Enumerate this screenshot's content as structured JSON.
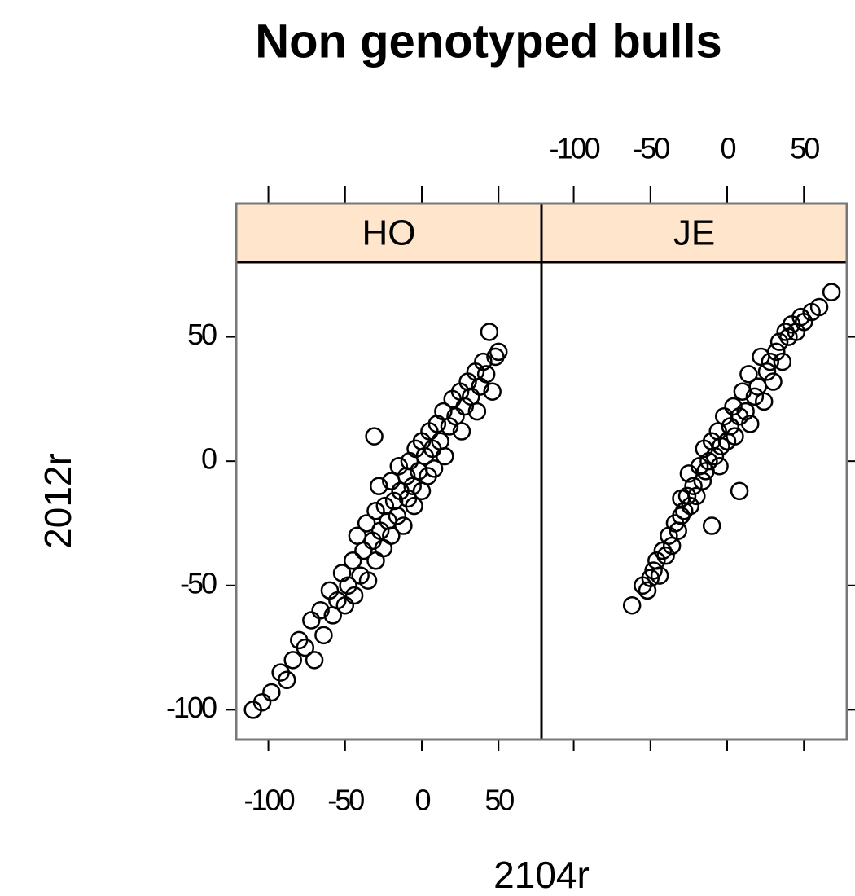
{
  "chart_data": {
    "type": "scatter",
    "title": "Non genotyped bulls",
    "xlabel": "2104r",
    "ylabel": "2012r",
    "xlim": [
      -121,
      78
    ],
    "ylim": [
      -112,
      80
    ],
    "xticks": [
      -100,
      -50,
      0,
      50
    ],
    "yticks": [
      -100,
      -50,
      0,
      50
    ],
    "strip_color": "#ffe5cc",
    "marker_color": "#000000",
    "series": [
      {
        "name": "HO",
        "x": [
          -110,
          -104,
          -98,
          -92,
          -88,
          -84,
          -80,
          -76,
          -72,
          -70,
          -66,
          -64,
          -60,
          -58,
          -55,
          -52,
          -50,
          -48,
          -45,
          -44,
          -42,
          -40,
          -38,
          -36,
          -35,
          -32,
          -31,
          -30,
          -30,
          -28,
          -27,
          -25,
          -24,
          -22,
          -20,
          -20,
          -18,
          -16,
          -15,
          -14,
          -12,
          -10,
          -9,
          -8,
          -6,
          -5,
          -4,
          -2,
          0,
          0,
          2,
          4,
          5,
          7,
          8,
          10,
          12,
          14,
          15,
          18,
          20,
          22,
          25,
          26,
          28,
          30,
          32,
          35,
          36,
          38,
          40,
          42,
          44,
          46,
          48,
          50
        ],
        "y": [
          -100,
          -97,
          -93,
          -85,
          -88,
          -80,
          -72,
          -75,
          -64,
          -80,
          -60,
          -70,
          -52,
          -62,
          -56,
          -45,
          -58,
          -50,
          -40,
          -54,
          -30,
          -46,
          -36,
          -25,
          -48,
          -32,
          10,
          -20,
          -40,
          -10,
          -28,
          -35,
          -18,
          -24,
          -8,
          -30,
          -16,
          -22,
          -2,
          -12,
          -26,
          -6,
          -15,
          0,
          -10,
          -18,
          5,
          -4,
          -12,
          8,
          2,
          -6,
          12,
          5,
          -3,
          15,
          8,
          20,
          2,
          14,
          25,
          18,
          28,
          12,
          22,
          32,
          26,
          36,
          20,
          30,
          40,
          35,
          52,
          28,
          42,
          44
        ]
      },
      {
        "name": "JE",
        "x": [
          -62,
          -55,
          -52,
          -50,
          -48,
          -46,
          -44,
          -42,
          -40,
          -38,
          -36,
          -34,
          -32,
          -30,
          -30,
          -28,
          -26,
          -25,
          -24,
          -22,
          -20,
          -18,
          -16,
          -15,
          -14,
          -12,
          -10,
          -10,
          -8,
          -6,
          -5,
          -4,
          -2,
          0,
          2,
          4,
          5,
          8,
          8,
          10,
          12,
          14,
          15,
          18,
          20,
          22,
          24,
          26,
          28,
          30,
          32,
          34,
          36,
          38,
          40,
          42,
          45,
          48,
          50,
          55,
          60,
          68
        ],
        "y": [
          -58,
          -50,
          -52,
          -47,
          -44,
          -40,
          -46,
          -36,
          -38,
          -30,
          -34,
          -25,
          -28,
          -15,
          -22,
          -20,
          -14,
          -5,
          -18,
          -10,
          -14,
          -2,
          -8,
          5,
          -4,
          0,
          -26,
          8,
          2,
          12,
          -2,
          6,
          18,
          8,
          14,
          22,
          10,
          -12,
          18,
          28,
          20,
          35,
          15,
          26,
          30,
          42,
          24,
          36,
          40,
          32,
          44,
          48,
          40,
          52,
          50,
          55,
          52,
          58,
          56,
          60,
          62,
          68
        ]
      }
    ]
  }
}
